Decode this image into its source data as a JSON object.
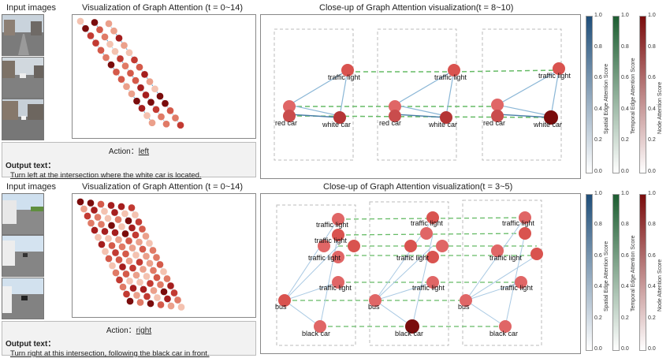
{
  "top": {
    "input_label": "Input images",
    "vis_title": "Visualization of Graph Attention (t = 0~14)",
    "closeup_title": "Close-up of Graph Attention visualization(t = 8~10)",
    "action_prefix": "Action：",
    "action_value": "left",
    "output_title": "Output text：",
    "output_text": "Turn left at the intersection where the white car is located.",
    "node_labels": [
      "traffic light",
      "red car",
      "white car"
    ]
  },
  "bottom": {
    "input_label": "Input images",
    "vis_title": "Visualization of Graph Attention (t = 0~14)",
    "closeup_title": "Close-up of Graph Attention visualization(t = 3~5)",
    "action_prefix": "Action：",
    "action_value": "right",
    "output_title": "Output text：",
    "output_text": "Turn right at this intersection, following the black car in front.",
    "node_labels": [
      "traffic light",
      "bus",
      "black car"
    ]
  },
  "colorbars": {
    "spatial": {
      "label": "Spatial Edge Attention Score",
      "color": "#1f4e79"
    },
    "temporal": {
      "label": "Temporal Edge Attention Score",
      "color": "#1e5e32"
    },
    "node": {
      "label": "Node Attention Score",
      "color": "#7a0c0c"
    },
    "ticks": [
      "1.0",
      "0.8",
      "0.6",
      "0.4",
      "0.2",
      "0.0"
    ]
  }
}
